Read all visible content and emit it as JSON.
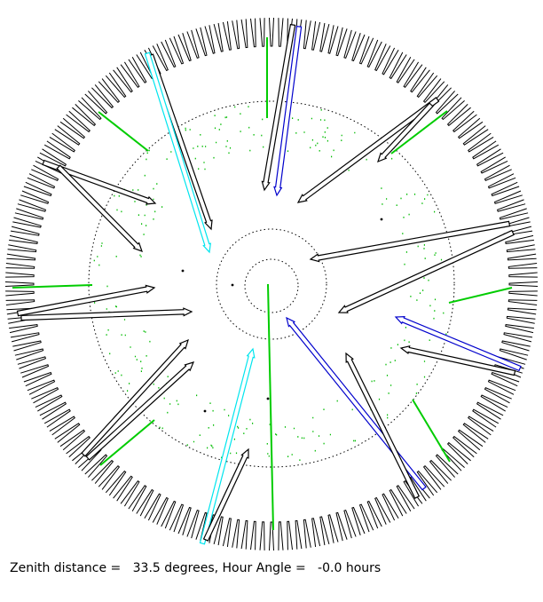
{
  "status": {
    "text": "Zenith distance =   33.5 degrees, Hour Angle =   -0.0 hours",
    "zenith_distance_degrees": 33.5,
    "hour_angle_hours": -0.0
  },
  "colors": {
    "background": "#ffffff",
    "fiber_probe": "#000000",
    "probe_cyan": "#00e5ee",
    "probe_blue": "#0000cc",
    "guide_green": "#00cc00",
    "target_dot_green": "#00bb00",
    "circles": "#000000"
  },
  "figure": {
    "rim_comb_teeth": 180,
    "probe_color_roles": [
      "black",
      "cyan",
      "blue"
    ],
    "guide_marker_color": "green",
    "field_circles": [
      "outer patrol field (dotted)",
      "middle field (dotted)",
      "inner field (dotted)"
    ]
  }
}
